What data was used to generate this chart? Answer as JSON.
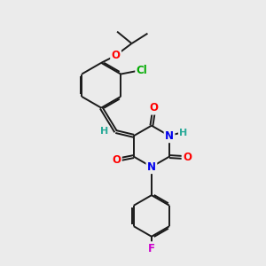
{
  "background_color": "#ebebeb",
  "bond_color": "#1a1a1a",
  "atom_colors": {
    "O": "#ff0000",
    "N": "#0000ee",
    "Cl": "#00aa00",
    "F": "#cc00cc",
    "H": "#2aaa99",
    "C": "#1a1a1a"
  },
  "figsize": [
    3.0,
    3.0
  ],
  "dpi": 100,
  "lw": 1.4,
  "fs": 8.5
}
